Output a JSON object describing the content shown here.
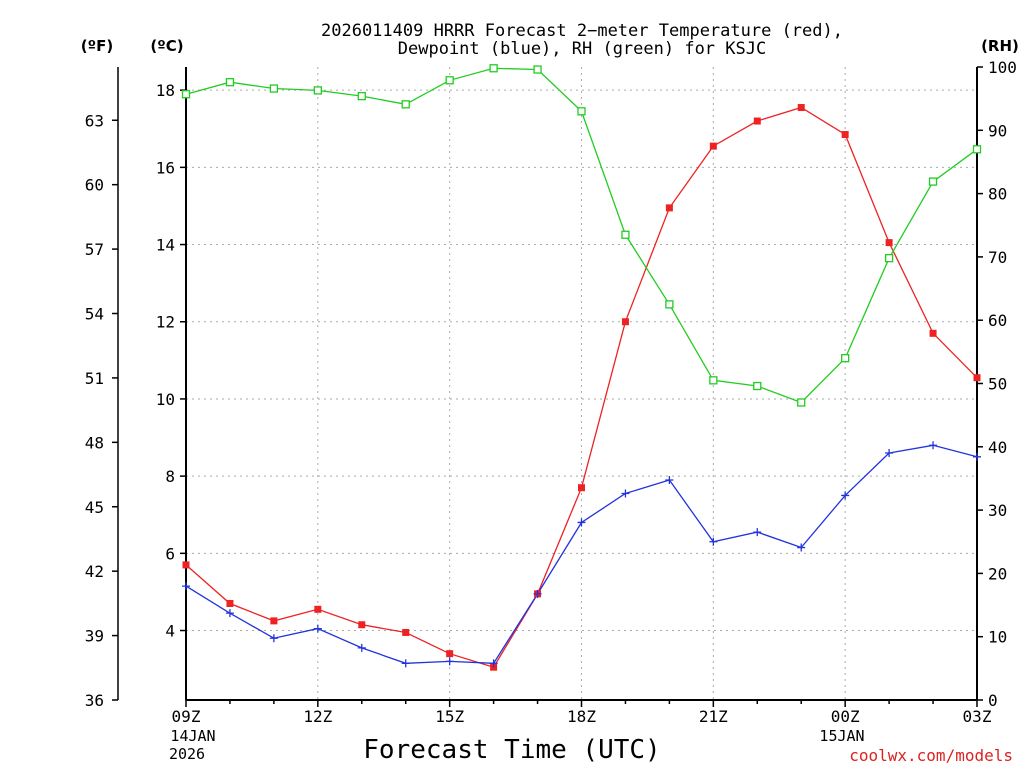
{
  "header": {
    "title_line1": "2026011409 HRRR Forecast 2−meter Temperature (red),",
    "title_line2": "Dewpoint (blue), RH (green) for KSJC",
    "unit_f": "(ºF)",
    "unit_c": "(ºC)",
    "unit_rh": "(RH)"
  },
  "xaxis": {
    "title": "Forecast Time (UTC)",
    "date_left_line1": "14JAN",
    "date_left_line2": "2026",
    "date_mid": "15JAN",
    "credit": "coolwx.com/models"
  },
  "colors": {
    "temperature": "#ee2222",
    "dewpoint": "#2233dd",
    "rh": "#22cc22",
    "grid": "#aaaaaa",
    "credit": "#dd2222"
  },
  "chart_data": {
    "type": "line",
    "title": "2026011409 HRRR Forecast 2−meter Temperature (red), Dewpoint (blue), RH (green) for KSJC",
    "xlabel": "Forecast Time (UTC)",
    "x": [
      "09Z",
      "10Z",
      "11Z",
      "12Z",
      "13Z",
      "14Z",
      "15Z",
      "16Z",
      "17Z",
      "18Z",
      "19Z",
      "20Z",
      "21Z",
      "22Z",
      "23Z",
      "00Z",
      "01Z",
      "02Z",
      "03Z"
    ],
    "x_tick_labels": [
      "09Z",
      "12Z",
      "15Z",
      "18Z",
      "21Z",
      "00Z",
      "03Z"
    ],
    "grid": true,
    "y_left_c": {
      "label": "(ºC)",
      "ylim": [
        2.2,
        18.6
      ],
      "ticks": [
        4,
        6,
        8,
        10,
        12,
        14,
        16,
        18
      ]
    },
    "y_left_f": {
      "label": "(ºF)",
      "ylim": [
        36,
        65.48
      ],
      "ticks": [
        36,
        39,
        42,
        45,
        48,
        51,
        54,
        57,
        60,
        63
      ]
    },
    "y_right_rh": {
      "label": "(RH)",
      "ylim": [
        0,
        100
      ],
      "ticks": [
        0,
        10,
        20,
        30,
        40,
        50,
        60,
        70,
        80,
        90,
        100
      ]
    },
    "series": [
      {
        "name": "Temperature",
        "color": "#ee2222",
        "marker": "filled-square",
        "axis": "c",
        "values": [
          5.7,
          4.7,
          4.25,
          4.55,
          4.15,
          3.95,
          3.4,
          3.05,
          4.95,
          7.7,
          12.0,
          14.95,
          16.55,
          17.2,
          17.55,
          16.85,
          14.05,
          11.7,
          10.55
        ]
      },
      {
        "name": "Dewpoint",
        "color": "#2233dd",
        "marker": "plus",
        "axis": "c",
        "values": [
          5.15,
          4.45,
          3.8,
          4.05,
          3.55,
          3.15,
          3.2,
          3.15,
          4.95,
          6.8,
          7.55,
          7.9,
          6.3,
          6.55,
          6.15,
          7.5,
          8.6,
          8.8,
          8.5
        ]
      },
      {
        "name": "RH",
        "color": "#22cc22",
        "marker": "open-square",
        "axis": "rh",
        "values": [
          95.7,
          97.6,
          96.6,
          96.3,
          95.4,
          94.1,
          97.9,
          99.8,
          99.6,
          93.0,
          73.5,
          62.5,
          50.5,
          49.6,
          47.0,
          54.0,
          69.8,
          81.9,
          87.0
        ]
      }
    ]
  }
}
